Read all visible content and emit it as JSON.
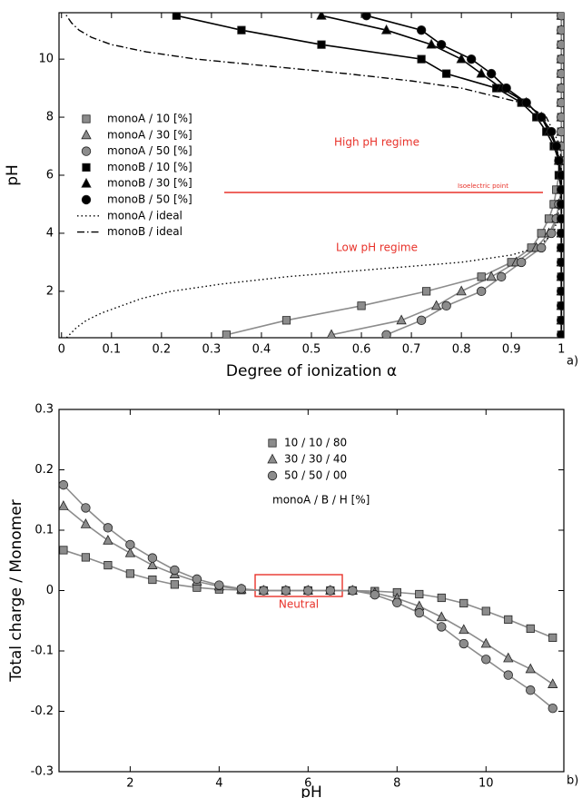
{
  "chart_data": [
    {
      "type": "line",
      "panel_label": "a)",
      "x_label": "Degree of ionization α",
      "y_label": "pH",
      "xlim": [
        -0.005,
        1.005
      ],
      "xticks": [
        0,
        0.1,
        0.2,
        0.3,
        0.4,
        0.5,
        0.6,
        0.7,
        0.8,
        0.9,
        1
      ],
      "ylim": [
        0.4,
        11.6
      ],
      "yticks": [
        2,
        4,
        6,
        8,
        10
      ],
      "annotations": [
        "High pH regime",
        "Isoelectric point",
        "Low pH regime"
      ],
      "series": [
        {
          "name": "monoA / 10 [%]",
          "marker": "square",
          "color": "#8c8c8c",
          "x": [
            0.33,
            0.45,
            0.6,
            0.73,
            0.84,
            0.9,
            0.94,
            0.96,
            0.975,
            0.985,
            0.99,
            0.995,
            1,
            1,
            1,
            1,
            1,
            1,
            1,
            1,
            1,
            1,
            1
          ],
          "values": [
            0.5,
            1,
            1.5,
            2,
            2.5,
            3,
            3.5,
            4,
            4.5,
            5,
            5.5,
            6,
            6.5,
            7,
            7.5,
            8,
            8.5,
            9,
            9.5,
            10,
            10.5,
            11,
            11.5
          ]
        },
        {
          "name": "monoA / 30 [%]",
          "marker": "triangle",
          "color": "#8c8c8c",
          "x": [
            0.54,
            0.68,
            0.75,
            0.8,
            0.86,
            0.91,
            0.95,
            0.975,
            0.99,
            0.995,
            1,
            1,
            1,
            1,
            1,
            1,
            1,
            1,
            1,
            1,
            1,
            1,
            1
          ],
          "values": [
            0.5,
            1,
            1.5,
            2,
            2.5,
            3,
            3.5,
            4,
            4.5,
            5,
            5.5,
            6,
            6.5,
            7,
            7.5,
            8,
            8.5,
            9,
            9.5,
            10,
            10.5,
            11,
            11.5
          ]
        },
        {
          "name": "monoA / 50 [%]",
          "marker": "circle",
          "color": "#8c8c8c",
          "x": [
            0.65,
            0.72,
            0.77,
            0.84,
            0.88,
            0.92,
            0.96,
            0.98,
            0.99,
            0.995,
            1,
            1,
            1,
            1,
            1,
            1,
            1,
            1,
            1,
            1,
            1,
            1,
            1
          ],
          "values": [
            0.5,
            1,
            1.5,
            2,
            2.5,
            3,
            3.5,
            4,
            4.5,
            5,
            5.5,
            6,
            6.5,
            7,
            7.5,
            8,
            8.5,
            9,
            9.5,
            10,
            10.5,
            11,
            11.5
          ]
        },
        {
          "name": "monoB / 10 [%]",
          "marker": "square",
          "color": "#000000",
          "x": [
            1,
            1,
            1,
            1,
            1,
            1,
            1,
            1,
            1,
            1,
            1,
            0.995,
            0.995,
            0.985,
            0.97,
            0.95,
            0.92,
            0.87,
            0.77,
            0.72,
            0.52,
            0.36,
            0.23
          ],
          "values": [
            0.5,
            1,
            1.5,
            2,
            2.5,
            3,
            3.5,
            4,
            4.5,
            5,
            5.5,
            6,
            6.5,
            7,
            7.5,
            8,
            8.5,
            9,
            9.5,
            10,
            10.5,
            11,
            11.5
          ]
        },
        {
          "name": "monoB / 30 [%]",
          "marker": "triangle",
          "color": "#000000",
          "x": [
            1,
            1,
            1,
            1,
            1,
            1,
            1,
            1,
            1,
            1,
            1,
            1,
            0.995,
            0.99,
            0.975,
            0.96,
            0.93,
            0.88,
            0.84,
            0.8,
            0.74,
            0.65,
            0.52
          ],
          "values": [
            0.5,
            1,
            1.5,
            2,
            2.5,
            3,
            3.5,
            4,
            4.5,
            5,
            5.5,
            6,
            6.5,
            7,
            7.5,
            8,
            8.5,
            9,
            9.5,
            10,
            10.5,
            11,
            11.5
          ]
        },
        {
          "name": "monoB / 50 [%]",
          "marker": "circle",
          "color": "#000000",
          "x": [
            1,
            1,
            1,
            1,
            1,
            1,
            1,
            1,
            1,
            1,
            1,
            1,
            0.995,
            0.99,
            0.98,
            0.96,
            0.93,
            0.89,
            0.86,
            0.82,
            0.76,
            0.72,
            0.61
          ],
          "values": [
            0.5,
            1,
            1.5,
            2,
            2.5,
            3,
            3.5,
            4,
            4.5,
            5,
            5.5,
            6,
            6.5,
            7,
            7.5,
            8,
            8.5,
            9,
            9.5,
            10,
            10.5,
            11,
            11.5
          ]
        },
        {
          "name": "monoA / ideal",
          "dash": "dotted",
          "color": "#000000",
          "x": [
            0.01,
            0.03,
            0.05,
            0.08,
            0.12,
            0.16,
            0.22,
            0.32,
            0.45,
            0.62,
            0.8,
            0.9,
            0.95,
            0.985,
            0.998,
            1
          ],
          "values": [
            0.4,
            0.75,
            1,
            1.25,
            1.5,
            1.75,
            2,
            2.25,
            2.5,
            2.75,
            3,
            3.25,
            3.5,
            4,
            5,
            6
          ]
        },
        {
          "name": "monoB / ideal",
          "dash": "dashdot",
          "color": "#000000",
          "x": [
            1,
            0.998,
            0.97,
            0.92,
            0.8,
            0.7,
            0.57,
            0.42,
            0.27,
            0.17,
            0.1,
            0.06,
            0.035,
            0.02,
            0.01,
            0.008
          ],
          "values": [
            6,
            7,
            8,
            8.5,
            9,
            9.25,
            9.5,
            9.75,
            10,
            10.25,
            10.5,
            10.75,
            11,
            11.25,
            11.5,
            11.6
          ]
        }
      ]
    },
    {
      "type": "line",
      "panel_label": "b)",
      "x_label": "pH",
      "y_label": "Total charge / Monomer",
      "xlim": [
        0.4,
        11.75
      ],
      "xticks": [
        2,
        4,
        6,
        8,
        10
      ],
      "ylim": [
        -0.3,
        0.3
      ],
      "yticks": [
        -0.3,
        -0.2,
        -0.1,
        0,
        0.1,
        0.2,
        0.3
      ],
      "legend_title": "monoA / B / H [%]",
      "annotations": [
        "Neutral"
      ],
      "x": [
        0.5,
        1,
        1.5,
        2,
        2.5,
        3,
        3.5,
        4,
        4.5,
        5,
        5.5,
        6,
        6.5,
        7,
        7.5,
        8,
        8.5,
        9,
        9.5,
        10,
        10.5,
        11,
        11.5
      ],
      "series": [
        {
          "name": "10 / 10 / 80",
          "marker": "square",
          "color": "#8c8c8c",
          "values": [
            0.067,
            0.055,
            0.042,
            0.028,
            0.018,
            0.01,
            0.005,
            0.002,
            0.001,
            0,
            0,
            0,
            0,
            0,
            -0.001,
            -0.003,
            -0.006,
            -0.012,
            -0.021,
            -0.034,
            -0.048,
            -0.063,
            -0.078
          ]
        },
        {
          "name": "30 / 30 / 40",
          "marker": "triangle",
          "color": "#8c8c8c",
          "values": [
            0.14,
            0.11,
            0.083,
            0.062,
            0.042,
            0.027,
            0.015,
            0.007,
            0.002,
            0,
            0,
            0,
            0,
            0,
            -0.004,
            -0.013,
            -0.026,
            -0.044,
            -0.065,
            -0.088,
            -0.112,
            -0.13,
            -0.155
          ]
        },
        {
          "name": "50 / 50 / 00",
          "marker": "circle",
          "color": "#8c8c8c",
          "values": [
            0.175,
            0.137,
            0.104,
            0.076,
            0.054,
            0.034,
            0.019,
            0.009,
            0.003,
            0,
            0,
            0,
            0,
            0,
            -0.007,
            -0.02,
            -0.037,
            -0.06,
            -0.088,
            -0.114,
            -0.14,
            -0.165,
            -0.195
          ]
        }
      ]
    }
  ]
}
